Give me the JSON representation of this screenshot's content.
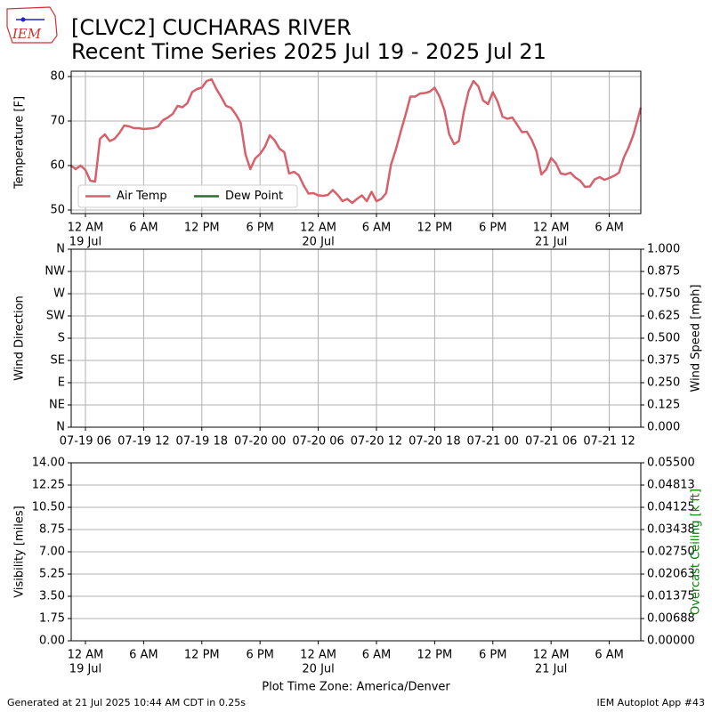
{
  "logo_text": "IEM",
  "footer": {
    "left": "Generated at 21 Jul 2025 10:44 AM CDT in 0.25s",
    "right": "IEM Autoplot App #43"
  },
  "chart_data": [
    {
      "type": "line",
      "title": "[CLVC2] CUCHARAS RIVER",
      "subtitle": "Recent Time Series 2025 Jul 19 - 2025 Jul 21",
      "ylabel": "Temperature [F]",
      "grid": "both",
      "legend": "lower left",
      "xlim": [
        "2025-07-18T22:32",
        "2025-07-21T09:15"
      ],
      "xticks": [
        {
          "value": "2025-07-19T00:00",
          "label": "12 AM"
        },
        {
          "value": "2025-07-19T06:00",
          "label": "6 AM"
        },
        {
          "value": "2025-07-19T12:00",
          "label": "12 PM"
        },
        {
          "value": "2025-07-19T18:00",
          "label": "6 PM"
        },
        {
          "value": "2025-07-20T00:00",
          "label": "12 AM"
        },
        {
          "value": "2025-07-20T06:00",
          "label": "6 AM"
        },
        {
          "value": "2025-07-20T12:00",
          "label": "12 PM"
        },
        {
          "value": "2025-07-20T18:00",
          "label": "6 PM"
        },
        {
          "value": "2025-07-21T00:00",
          "label": "12 AM"
        },
        {
          "value": "2025-07-21T06:00",
          "label": "6 AM"
        }
      ],
      "xdate_labels": [
        {
          "value": "2025-07-19T00:00",
          "label": "19 Jul"
        },
        {
          "value": "2025-07-20T00:00",
          "label": "20 Jul"
        },
        {
          "value": "2025-07-21T00:00",
          "label": "21 Jul"
        }
      ],
      "ylim": [
        49.2,
        81.2
      ],
      "yticks": [
        50,
        60,
        70,
        80
      ],
      "x": [
        "2025-07-18T22:30",
        "2025-07-18T23:00",
        "2025-07-18T23:30",
        "2025-07-19T00:00",
        "2025-07-19T00:30",
        "2025-07-19T01:00",
        "2025-07-19T01:30",
        "2025-07-19T02:00",
        "2025-07-19T02:30",
        "2025-07-19T03:00",
        "2025-07-19T03:30",
        "2025-07-19T04:00",
        "2025-07-19T04:30",
        "2025-07-19T05:00",
        "2025-07-19T05:30",
        "2025-07-19T06:00",
        "2025-07-19T06:30",
        "2025-07-19T07:00",
        "2025-07-19T07:30",
        "2025-07-19T08:00",
        "2025-07-19T08:30",
        "2025-07-19T09:00",
        "2025-07-19T09:30",
        "2025-07-19T10:00",
        "2025-07-19T10:30",
        "2025-07-19T11:00",
        "2025-07-19T11:30",
        "2025-07-19T12:00",
        "2025-07-19T12:30",
        "2025-07-19T13:00",
        "2025-07-19T13:30",
        "2025-07-19T14:00",
        "2025-07-19T14:30",
        "2025-07-19T15:00",
        "2025-07-19T15:30",
        "2025-07-19T16:00",
        "2025-07-19T16:30",
        "2025-07-19T17:00",
        "2025-07-19T17:30",
        "2025-07-19T18:00",
        "2025-07-19T18:30",
        "2025-07-19T19:00",
        "2025-07-19T19:30",
        "2025-07-19T20:00",
        "2025-07-19T20:30",
        "2025-07-19T21:00",
        "2025-07-19T21:30",
        "2025-07-19T22:00",
        "2025-07-19T22:30",
        "2025-07-19T23:00",
        "2025-07-19T23:30",
        "2025-07-20T00:00",
        "2025-07-20T00:30",
        "2025-07-20T01:00",
        "2025-07-20T01:30",
        "2025-07-20T02:00",
        "2025-07-20T02:30",
        "2025-07-20T03:00",
        "2025-07-20T03:30",
        "2025-07-20T04:00",
        "2025-07-20T04:30",
        "2025-07-20T05:00",
        "2025-07-20T05:30",
        "2025-07-20T06:00",
        "2025-07-20T06:30",
        "2025-07-20T07:00",
        "2025-07-20T07:30",
        "2025-07-20T08:00",
        "2025-07-20T08:30",
        "2025-07-20T09:00",
        "2025-07-20T09:30",
        "2025-07-20T10:00",
        "2025-07-20T10:30",
        "2025-07-20T11:00",
        "2025-07-20T11:30",
        "2025-07-20T12:00",
        "2025-07-20T12:30",
        "2025-07-20T13:00",
        "2025-07-20T13:30",
        "2025-07-20T14:00",
        "2025-07-20T14:30",
        "2025-07-20T15:00",
        "2025-07-20T15:30",
        "2025-07-20T16:00",
        "2025-07-20T16:30",
        "2025-07-20T17:00",
        "2025-07-20T17:30",
        "2025-07-20T18:00",
        "2025-07-20T18:30",
        "2025-07-20T19:00",
        "2025-07-20T19:30",
        "2025-07-20T20:00",
        "2025-07-20T20:30",
        "2025-07-20T21:00",
        "2025-07-20T21:30",
        "2025-07-20T22:00",
        "2025-07-20T22:30",
        "2025-07-20T23:00",
        "2025-07-20T23:30",
        "2025-07-21T00:00",
        "2025-07-21T00:30",
        "2025-07-21T01:00",
        "2025-07-21T01:30",
        "2025-07-21T02:00",
        "2025-07-21T02:30",
        "2025-07-21T03:00",
        "2025-07-21T03:30",
        "2025-07-21T04:00",
        "2025-07-21T04:30",
        "2025-07-21T05:00",
        "2025-07-21T05:30",
        "2025-07-21T06:00",
        "2025-07-21T06:30",
        "2025-07-21T07:00",
        "2025-07-21T07:30",
        "2025-07-21T08:00",
        "2025-07-21T08:30",
        "2025-07-21T09:00",
        "2025-07-21T09:15"
      ],
      "series": [
        {
          "name": "Air Temp",
          "color": "#d6606b",
          "values": [
            60,
            59.2,
            60,
            59,
            56.6,
            56.4,
            66,
            67,
            65.5,
            66,
            67.3,
            69,
            68.8,
            68.4,
            68.4,
            68.2,
            68.3,
            68.4,
            68.8,
            70.2,
            70.8,
            71.6,
            73.4,
            73.1,
            74,
            76.5,
            77.2,
            77.5,
            79,
            79.4,
            77.2,
            75.4,
            73.4,
            73,
            71.5,
            69.6,
            62.5,
            59.2,
            61.6,
            62.6,
            64.2,
            66.8,
            65.7,
            63.8,
            63,
            58.2,
            58.6,
            57.8,
            55.5,
            53.7,
            53.8,
            53.3,
            53.2,
            53.4,
            54.5,
            53.4,
            52,
            52.5,
            51.6,
            52.5,
            53.3,
            52,
            54.1,
            52,
            52.5,
            53.8,
            60.2,
            63.6,
            67.6,
            71.4,
            75.5,
            75.5,
            76.2,
            76.3,
            76.6,
            77.5,
            75.5,
            72.5,
            67,
            64.8,
            65.5,
            72,
            76.7,
            79,
            77.8,
            74.6,
            73.8,
            76.5,
            74.3,
            71,
            70.5,
            70.8,
            69.2,
            67.5,
            67.6,
            65.8,
            63.2,
            58,
            59.1,
            61.7,
            60.5,
            58.2,
            58,
            58.4,
            57.3,
            56.6,
            55.2,
            55.3,
            56.9,
            57.4,
            56.8,
            57.2,
            57.7,
            58.4,
            61.8,
            64.1,
            67,
            71,
            73
          ]
        },
        {
          "name": "Dew Point",
          "color": "#2e6b2e"
        }
      ]
    },
    {
      "type": "line",
      "ylabel": "Wind Direction",
      "y2label": "Wind Speed [mph]",
      "grid": "both",
      "xlim": [
        "2025-07-19T04:32",
        "2025-07-21T15:15"
      ],
      "xticks": [
        {
          "value": "2025-07-19T06:00",
          "label": "07-19 06"
        },
        {
          "value": "2025-07-19T12:00",
          "label": "07-19 12"
        },
        {
          "value": "2025-07-19T18:00",
          "label": "07-19 18"
        },
        {
          "value": "2025-07-20T00:00",
          "label": "07-20 00"
        },
        {
          "value": "2025-07-20T06:00",
          "label": "07-20 06"
        },
        {
          "value": "2025-07-20T12:00",
          "label": "07-20 12"
        },
        {
          "value": "2025-07-20T18:00",
          "label": "07-20 18"
        },
        {
          "value": "2025-07-21T00:00",
          "label": "07-21 00"
        },
        {
          "value": "2025-07-21T06:00",
          "label": "07-21 06"
        },
        {
          "value": "2025-07-21T12:00",
          "label": "07-21 12"
        }
      ],
      "ylim": [
        0,
        360
      ],
      "yticks": [
        {
          "value": 0,
          "label": "N"
        },
        {
          "value": 45,
          "label": "NE"
        },
        {
          "value": 90,
          "label": "E"
        },
        {
          "value": 135,
          "label": "SE"
        },
        {
          "value": 180,
          "label": "S"
        },
        {
          "value": 225,
          "label": "SW"
        },
        {
          "value": 270,
          "label": "W"
        },
        {
          "value": 315,
          "label": "NW"
        },
        {
          "value": 360,
          "label": "N"
        }
      ],
      "y2lim": [
        0,
        1
      ],
      "y2ticks": [
        {
          "value": 0,
          "label": "0.000"
        },
        0.125,
        {
          "value": 0.25,
          "label": "0.250"
        },
        0.375,
        {
          "value": 0.5,
          "label": "0.500"
        },
        0.625,
        {
          "value": 0.75,
          "label": "0.750"
        },
        0.875,
        {
          "value": 1,
          "label": "1.000"
        }
      ]
    },
    {
      "type": "line",
      "ylabel": "Visibility [miles]",
      "y2label": "Overcast Ceiling [k ft]",
      "y2label_color": "#008000",
      "grid": "y",
      "xlabel": "Plot Time Zone: America/Denver",
      "xlim": [
        "2025-07-18T22:32",
        "2025-07-21T09:15"
      ],
      "xticks": [
        {
          "value": "2025-07-19T00:00",
          "label": "12 AM"
        },
        {
          "value": "2025-07-19T06:00",
          "label": "6 AM"
        },
        {
          "value": "2025-07-19T12:00",
          "label": "12 PM"
        },
        {
          "value": "2025-07-19T18:00",
          "label": "6 PM"
        },
        {
          "value": "2025-07-20T00:00",
          "label": "12 AM"
        },
        {
          "value": "2025-07-20T06:00",
          "label": "6 AM"
        },
        {
          "value": "2025-07-20T12:00",
          "label": "12 PM"
        },
        {
          "value": "2025-07-20T18:00",
          "label": "6 PM"
        },
        {
          "value": "2025-07-21T00:00",
          "label": "12 AM"
        },
        {
          "value": "2025-07-21T06:00",
          "label": "6 AM"
        }
      ],
      "xdate_labels": [
        {
          "value": "2025-07-19T00:00",
          "label": "19 Jul"
        },
        {
          "value": "2025-07-20T00:00",
          "label": "20 Jul"
        },
        {
          "value": "2025-07-21T00:00",
          "label": "21 Jul"
        }
      ],
      "ylim": [
        0,
        14
      ],
      "yticks": [
        {
          "value": 0,
          "label": "0.00"
        },
        1.75,
        {
          "value": 3.5,
          "label": "3.50"
        },
        5.25,
        {
          "value": 7,
          "label": "7.00"
        },
        8.75,
        {
          "value": 10.5,
          "label": "10.50"
        },
        12.25,
        {
          "value": 14,
          "label": "14.00"
        }
      ],
      "y2lim": [
        0,
        0.055
      ],
      "y2ticks": [
        {
          "value": 0,
          "label": "0.00000"
        },
        {
          "value": 0.006875,
          "label": "0.00688"
        },
        0.01375,
        {
          "value": 0.020625,
          "label": "0.02063"
        },
        {
          "value": 0.0275,
          "label": "0.02750"
        },
        {
          "value": 0.034375,
          "label": "0.03438"
        },
        0.04125,
        {
          "value": 0.048125,
          "label": "0.04813"
        },
        {
          "value": 0.055,
          "label": "0.05500"
        }
      ]
    }
  ]
}
